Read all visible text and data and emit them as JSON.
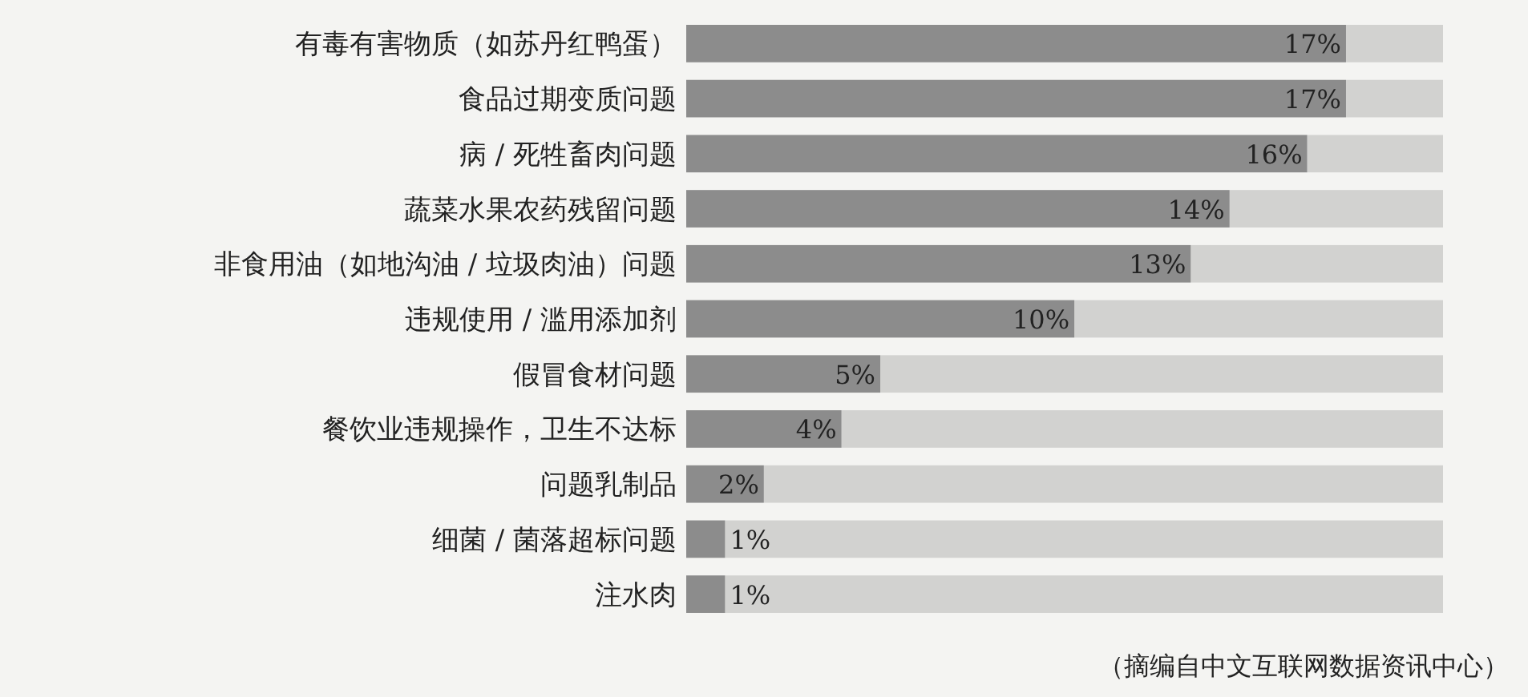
{
  "chart_data": {
    "type": "bar",
    "orientation": "horizontal",
    "categories": [
      "有毒有害物质（如苏丹红鸭蛋）",
      "食品过期变质问题",
      "病 / 死牲畜肉问题",
      "蔬菜水果农药残留问题",
      "非食用油（如地沟油 / 垃圾肉油）问题",
      "违规使用 / 滥用添加剂",
      "假冒食材问题",
      "餐饮业违规操作，卫生不达标",
      "问题乳制品",
      "细菌 / 菌落超标问题",
      "注水肉"
    ],
    "values": [
      17,
      17,
      16,
      14,
      13,
      10,
      5,
      4,
      2,
      1,
      1
    ],
    "value_labels": [
      "17%",
      "17%",
      "16%",
      "14%",
      "13%",
      "10%",
      "5%",
      "4%",
      "2%",
      "1%",
      "1%"
    ],
    "color": "#8c8c8c",
    "xlim": [
      0,
      19.5
    ],
    "tick_labels": "y",
    "annotations": [
      "（摘编自中文互联网数据资讯中心）"
    ]
  }
}
